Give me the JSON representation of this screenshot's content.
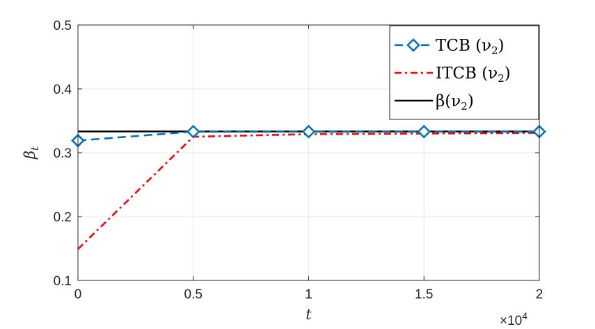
{
  "chart_data": {
    "type": "line",
    "x": [
      0,
      5000,
      10000,
      15000,
      20000
    ],
    "xlim": [
      0,
      20000
    ],
    "ylim": [
      0.1,
      0.5
    ],
    "x_tick_values": [
      0,
      5000,
      10000,
      15000,
      20000
    ],
    "x_tick_labels": [
      "0",
      "0.5",
      "1",
      "1.5",
      "2"
    ],
    "x_exponent_label": "×10",
    "x_exponent_power": "4",
    "y_tick_values": [
      0.1,
      0.2,
      0.3,
      0.4,
      0.5
    ],
    "y_tick_labels": [
      "0.1",
      "0.2",
      "0.3",
      "0.4",
      "0.5"
    ],
    "xlabel": "t",
    "ylabel_base": "β",
    "ylabel_sub": "t",
    "grid": true,
    "legend_position": "top-right",
    "series": [
      {
        "name": "TCB (ν₂)",
        "legend_label": "TCB (ν",
        "legend_sub": "2",
        "color": "#0072BD",
        "line_style": "dashed",
        "marker": "diamond",
        "values": [
          0.319,
          0.333,
          0.333,
          0.333,
          0.333
        ]
      },
      {
        "name": "ITCB (ν₂)",
        "legend_label": "ITCB (ν",
        "legend_sub": "2",
        "color": "#FF0000",
        "line_style": "dash-dot",
        "marker": "none",
        "values": [
          0.149,
          0.325,
          0.329,
          0.33,
          0.331
        ]
      },
      {
        "name": "β(ν₂)",
        "legend_label": "β(ν",
        "legend_sub": "2",
        "color": "#000000",
        "line_style": "solid",
        "marker": "none",
        "values": [
          0.3333,
          0.3333,
          0.3333,
          0.3333,
          0.3333
        ]
      }
    ]
  }
}
